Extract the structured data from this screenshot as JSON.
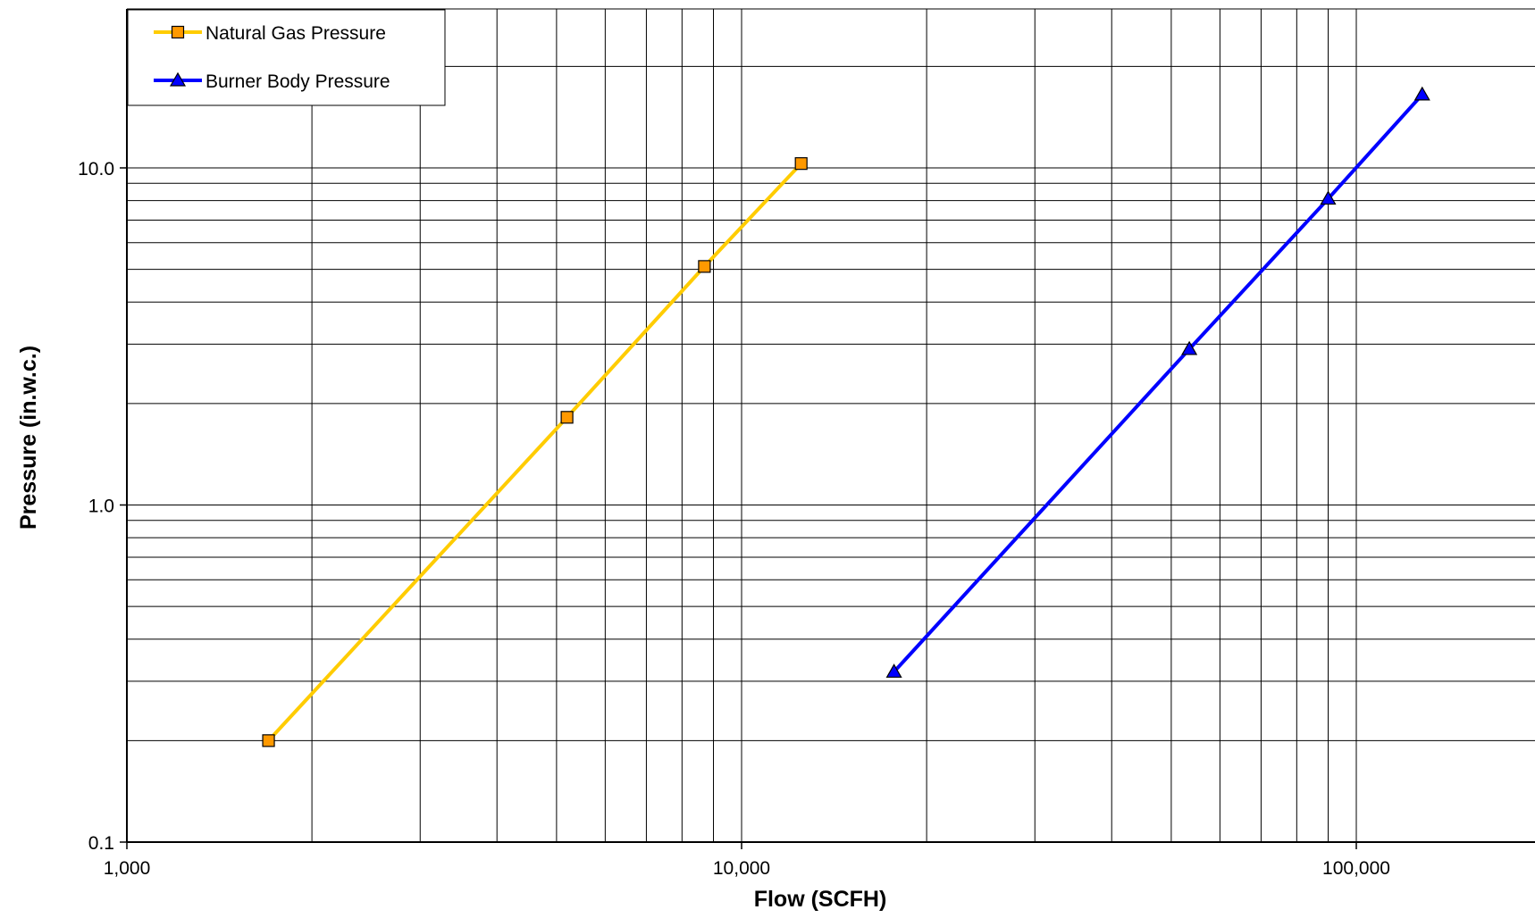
{
  "chart_data": {
    "type": "line",
    "title": "",
    "xlabel": "Flow (SCFH)",
    "ylabel": "Pressure (in.w.c.)",
    "x_scale": "log",
    "y_scale": "log",
    "xlim": [
      1000,
      200000
    ],
    "ylim": [
      0.1,
      30
    ],
    "x_ticks": [
      1000,
      10000,
      100000
    ],
    "x_tick_labels": [
      "1,000",
      "10,000",
      "100,000"
    ],
    "y_ticks": [
      0.1,
      1.0,
      10.0
    ],
    "y_tick_labels": [
      "0.1",
      "1.0",
      "10.0"
    ],
    "grid": true,
    "legend_position": "top-left",
    "series": [
      {
        "name": "Natural Gas Pressure",
        "color": "#FFCC00",
        "marker": "square",
        "marker_color": "#FF9900",
        "x": [
          1700,
          5200,
          8700,
          12500
        ],
        "y": [
          0.2,
          1.82,
          5.1,
          10.3
        ]
      },
      {
        "name": "Burner Body Pressure",
        "color": "#0000FF",
        "marker": "triangle",
        "marker_color": "#0000FF",
        "x": [
          17700,
          53500,
          90000,
          128000
        ],
        "y": [
          0.32,
          2.9,
          8.1,
          16.5
        ]
      }
    ]
  }
}
